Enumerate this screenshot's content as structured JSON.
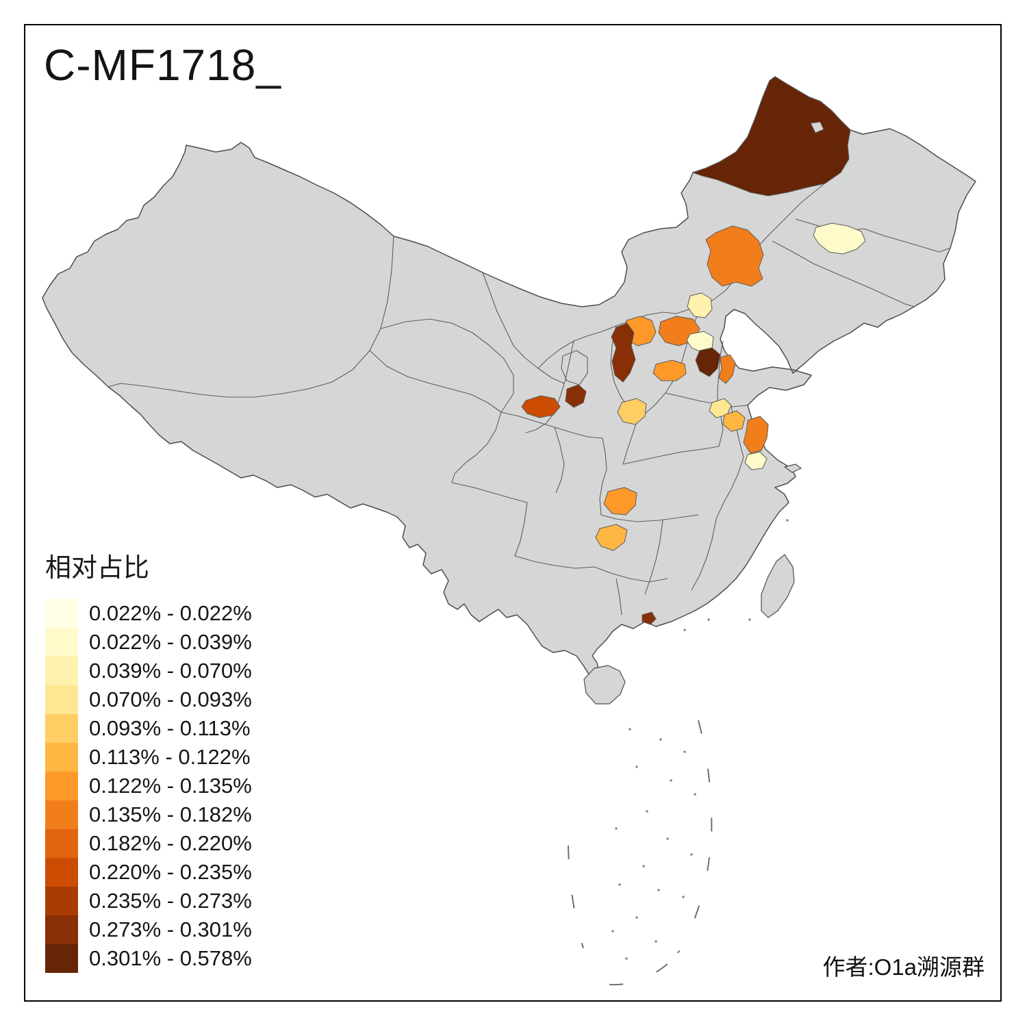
{
  "title": "C-MF1718_",
  "credit": "作者:O1a溯源群",
  "legend": {
    "title": "相对占比",
    "items": [
      {
        "range": "0.022% - 0.022%",
        "color": "#FFFFE5"
      },
      {
        "range": "0.022% - 0.039%",
        "color": "#FFFACA"
      },
      {
        "range": "0.039% - 0.070%",
        "color": "#FFF1AE"
      },
      {
        "range": "0.070% - 0.093%",
        "color": "#FEE791"
      },
      {
        "range": "0.093% - 0.113%",
        "color": "#FECE65"
      },
      {
        "range": "0.113% - 0.122%",
        "color": "#FEB642"
      },
      {
        "range": "0.122% - 0.135%",
        "color": "#FE9929"
      },
      {
        "range": "0.135% - 0.182%",
        "color": "#F27E1B"
      },
      {
        "range": "0.182% - 0.220%",
        "color": "#E1640E"
      },
      {
        "range": "0.220% - 0.235%",
        "color": "#CC4C02"
      },
      {
        "range": "0.235% - 0.273%",
        "color": "#AA3C03"
      },
      {
        "range": "0.273% - 0.301%",
        "color": "#882F05"
      },
      {
        "range": "0.301% - 0.578%",
        "color": "#662506"
      }
    ]
  },
  "map": {
    "background": "#FFFFFF",
    "land_color": "#D6D6D6",
    "border_color": "#4C4C4C",
    "regions": [
      {
        "id": "region-1",
        "color": "#662506"
      },
      {
        "id": "region-2",
        "color": "#F27E1B"
      },
      {
        "id": "region-3",
        "color": "#FFFACA"
      },
      {
        "id": "region-4",
        "color": "#FFF1AE"
      },
      {
        "id": "region-5",
        "color": "#FE9929"
      },
      {
        "id": "region-6",
        "color": "#F27E1B"
      },
      {
        "id": "region-7",
        "color": "#882F05"
      },
      {
        "id": "region-8",
        "color": "#FFFACA"
      },
      {
        "id": "region-9",
        "color": "#662506"
      },
      {
        "id": "region-10",
        "color": "#F27E1B"
      },
      {
        "id": "region-11",
        "color": "#FE9929"
      },
      {
        "id": "region-12",
        "color": "#CC4C02"
      },
      {
        "id": "region-13",
        "color": "#882F05"
      },
      {
        "id": "region-14",
        "color": "#FECE65"
      },
      {
        "id": "region-15",
        "color": "#FEE791"
      },
      {
        "id": "region-16",
        "color": "#FEB642"
      },
      {
        "id": "region-17",
        "color": "#F27E1B"
      },
      {
        "id": "region-18",
        "color": "#FFFACA"
      },
      {
        "id": "region-19",
        "color": "#FE9929"
      },
      {
        "id": "region-20",
        "color": "#FEB642"
      },
      {
        "id": "region-21",
        "color": "#882F05"
      }
    ]
  }
}
